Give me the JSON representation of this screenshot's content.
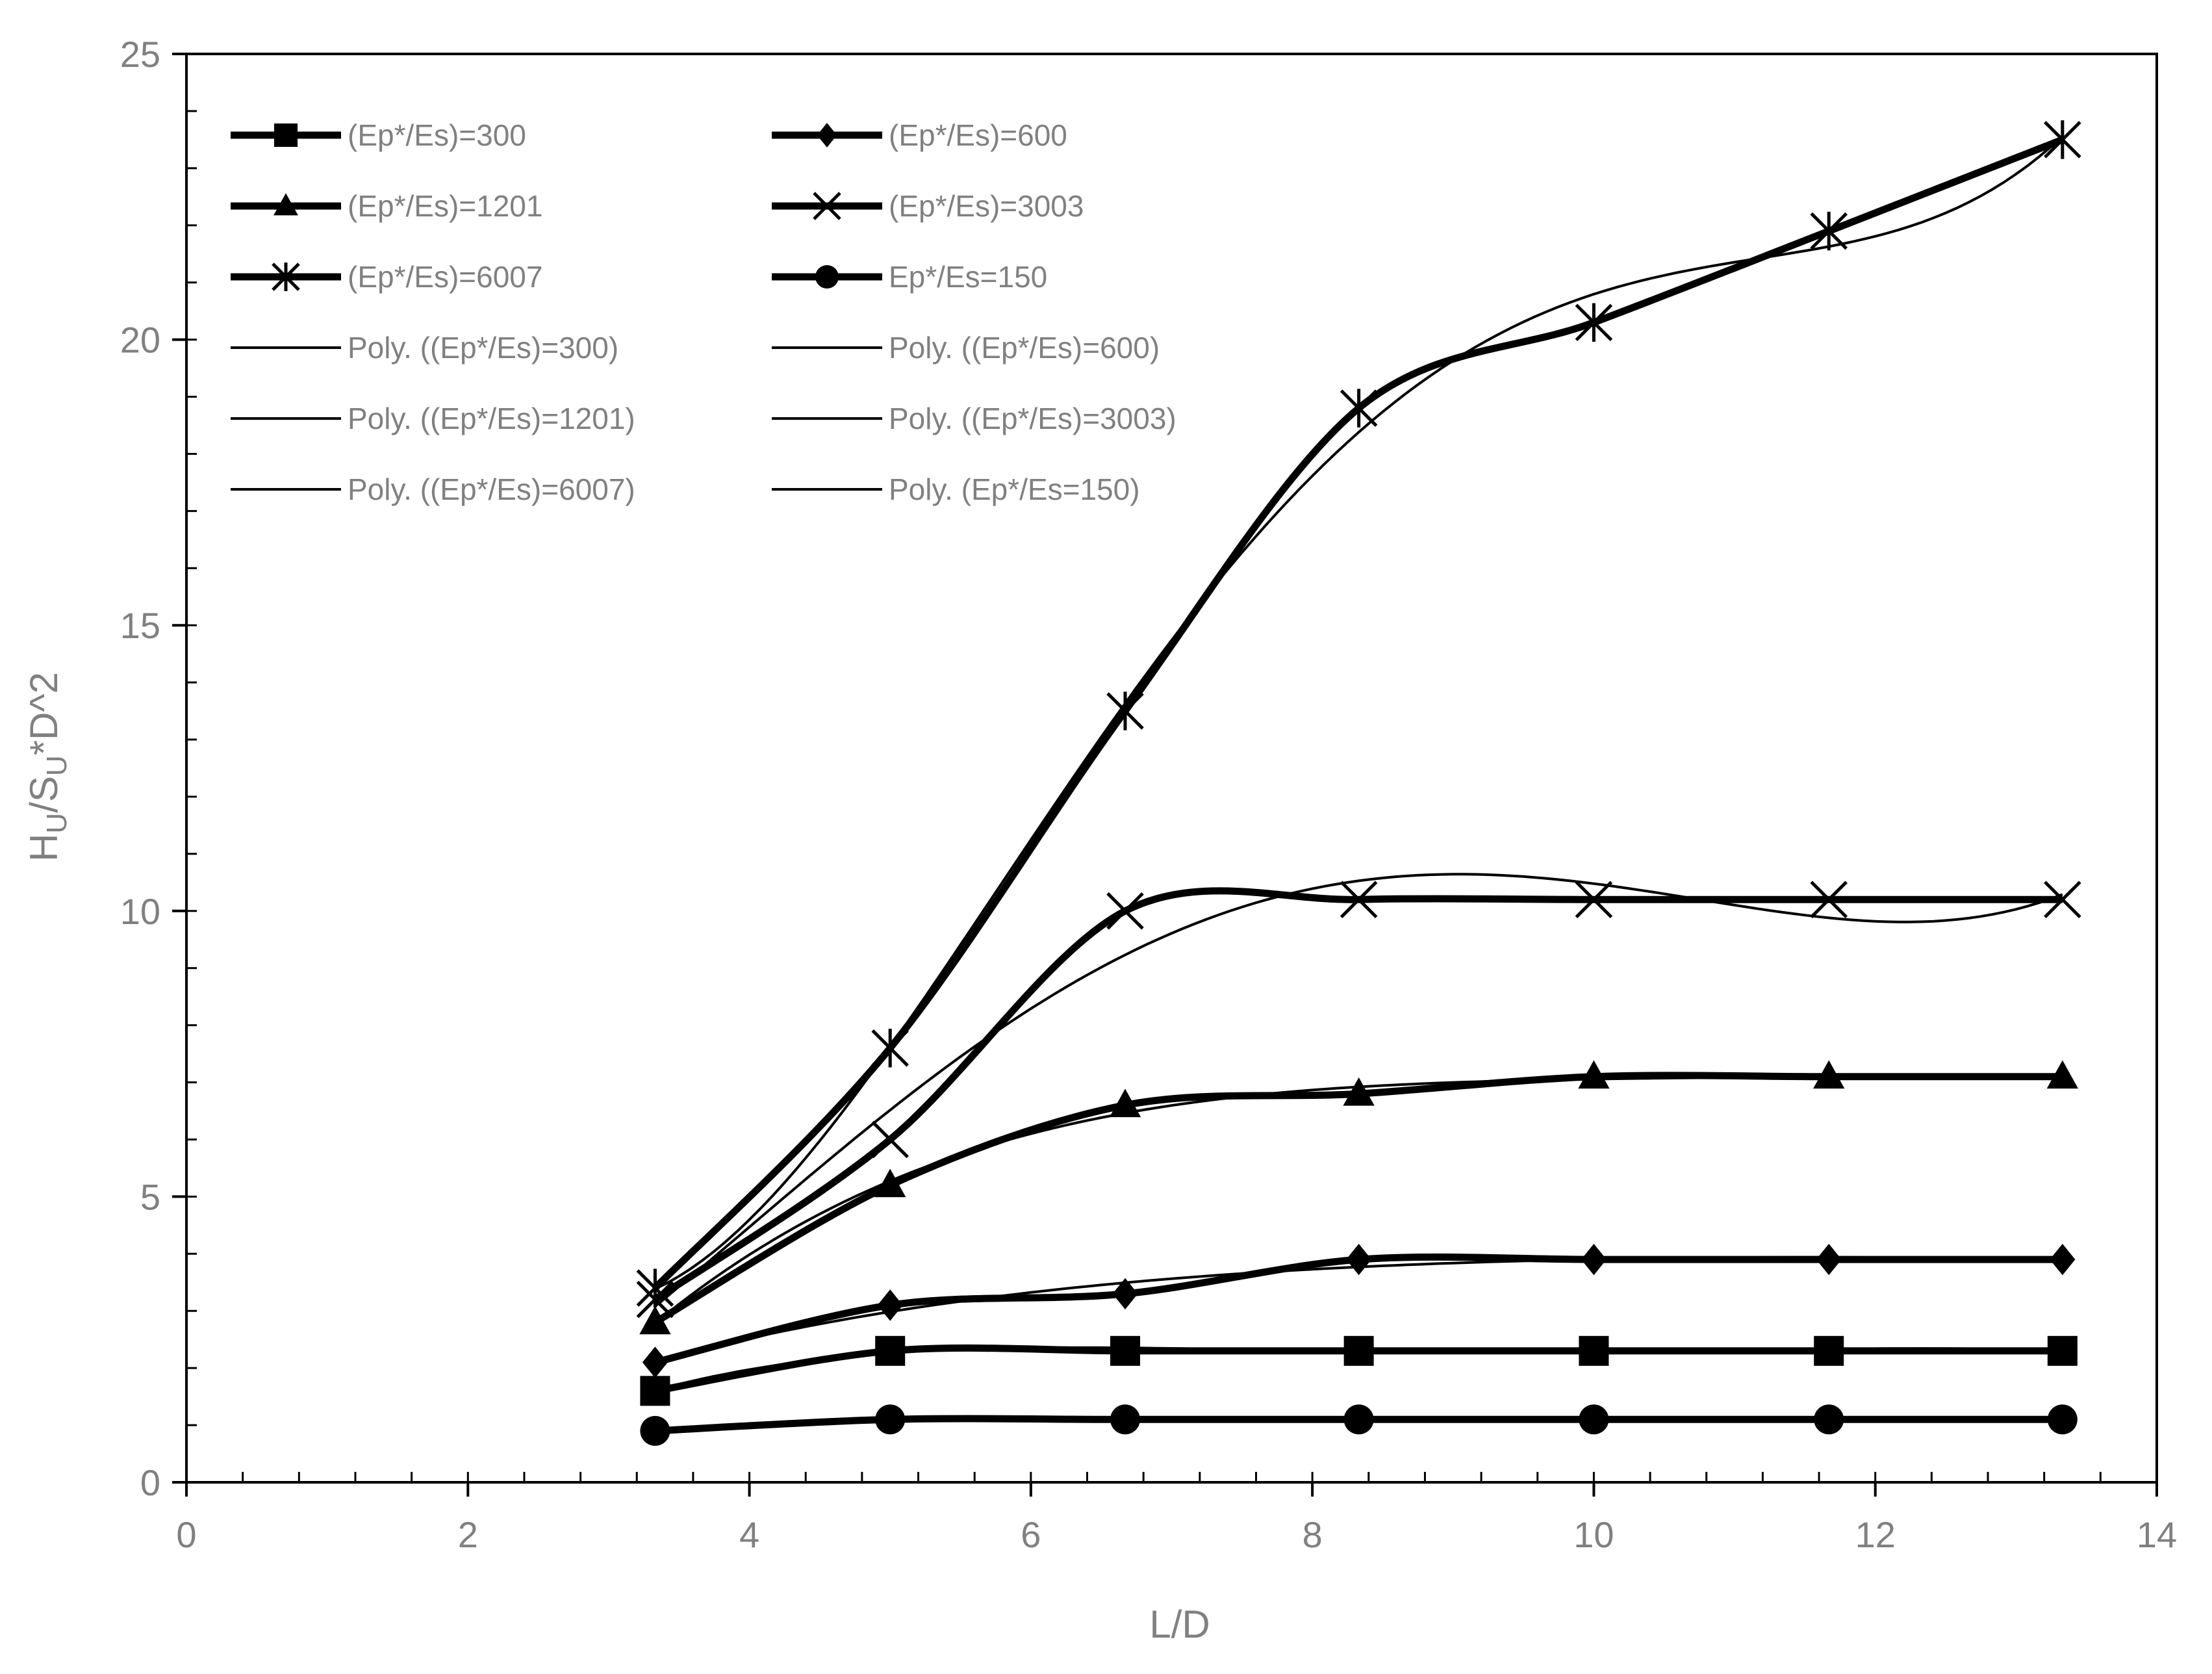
{
  "chart_data": {
    "type": "line",
    "title": "",
    "xlabel": "L/D",
    "ylabel_parts": {
      "h": "H",
      "h_sub": "U",
      "mid": "/S",
      "s_sub": "U",
      "tail": "*D^2"
    },
    "xlim": [
      0,
      14
    ],
    "ylim": [
      0,
      25
    ],
    "x_ticks": [
      "0",
      "2",
      "4",
      "6",
      "8",
      "10",
      "12",
      "14"
    ],
    "y_ticks": [
      "0",
      "5",
      "10",
      "15",
      "20",
      "25"
    ],
    "grid": false,
    "legend_position": "top-left, inside plot, two columns",
    "x": [
      3.33,
      5.0,
      6.67,
      8.33,
      10.0,
      11.67,
      13.33
    ],
    "series": [
      {
        "name": "(Ep*/Es)=300",
        "marker": "square",
        "values": [
          1.6,
          2.3,
          2.3,
          2.3,
          2.3,
          2.3,
          2.3
        ]
      },
      {
        "name": "(Ep*/Es)=600",
        "marker": "diamond",
        "values": [
          2.1,
          3.1,
          3.3,
          3.9,
          3.9,
          3.9,
          3.9
        ]
      },
      {
        "name": "(Ep*/Es)=1201",
        "marker": "triangle",
        "values": [
          2.8,
          5.2,
          6.6,
          6.8,
          7.1,
          7.1,
          7.1
        ]
      },
      {
        "name": "(Ep*/Es)=3003",
        "marker": "x",
        "values": [
          3.2,
          6.0,
          10.0,
          10.2,
          10.2,
          10.2,
          10.2
        ]
      },
      {
        "name": "(Ep*/Es)=6007",
        "marker": "star",
        "values": [
          3.4,
          7.6,
          13.5,
          18.8,
          20.3,
          21.9,
          23.5
        ]
      },
      {
        "name": "Ep*/Es=150",
        "marker": "circle",
        "values": [
          0.9,
          1.1,
          1.1,
          1.1,
          1.1,
          1.1,
          1.1
        ]
      }
    ],
    "trendlines": [
      {
        "name": "Poly. ((Ep*/Es)=300)",
        "series_index": 0
      },
      {
        "name": "Poly. ((Ep*/Es)=600)",
        "series_index": 1
      },
      {
        "name": "Poly. ((Ep*/Es)=1201)",
        "series_index": 2
      },
      {
        "name": "Poly. ((Ep*/Es)=3003)",
        "series_index": 3
      },
      {
        "name": "Poly. ((Ep*/Es)=6007)",
        "series_index": 4
      },
      {
        "name": "Poly. (Ep*/Es=150)",
        "series_index": 5
      }
    ],
    "legend_order": [
      0,
      1,
      2,
      3,
      4,
      5
    ],
    "line_color": "#000000",
    "text_color": "#808080"
  }
}
